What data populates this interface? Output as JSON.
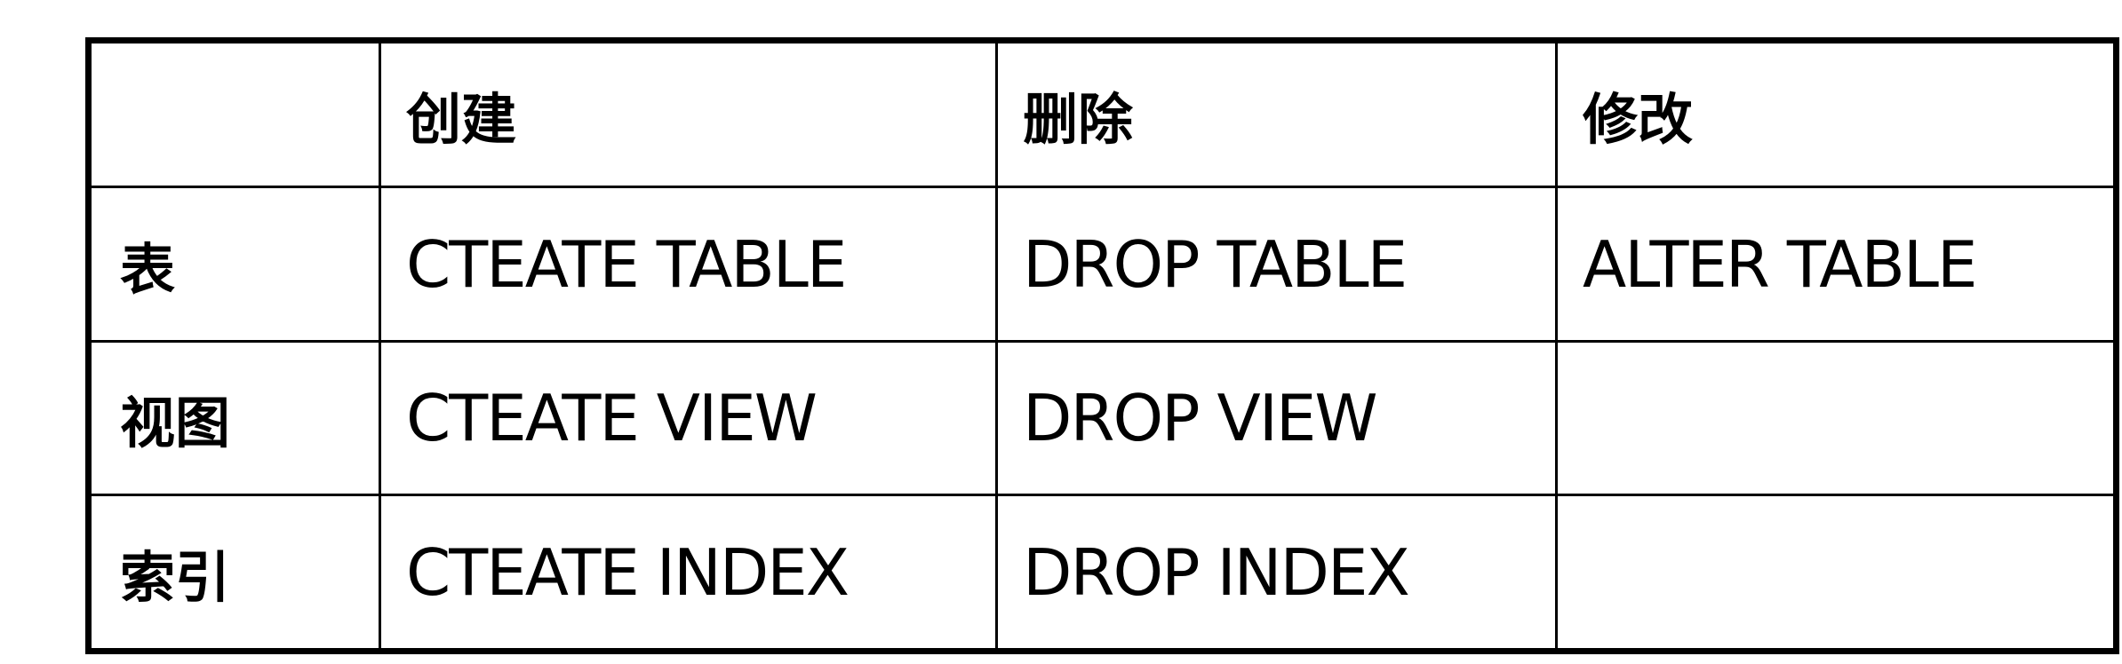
{
  "table": {
    "corner": "",
    "columns": [
      "创建",
      "删除",
      "修改"
    ],
    "rows": [
      {
        "label": "表",
        "cells": [
          "CTEATE TABLE",
          "DROP TABLE",
          "ALTER TABLE"
        ]
      },
      {
        "label": "视图",
        "cells": [
          "CTEATE VIEW",
          "DROP VIEW",
          ""
        ]
      },
      {
        "label": "索引",
        "cells": [
          "CTEATE INDEX",
          "DROP INDEX",
          ""
        ]
      }
    ]
  }
}
